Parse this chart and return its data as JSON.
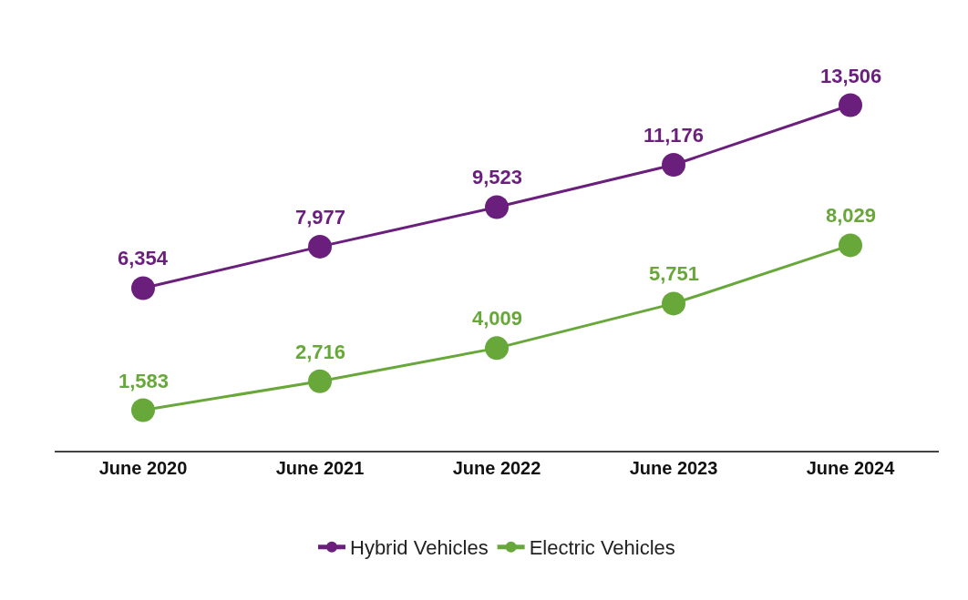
{
  "chart_data": {
    "type": "line",
    "categories": [
      "June 2020",
      "June 2021",
      "June 2022",
      "June 2023",
      "June 2024"
    ],
    "series": [
      {
        "name": "Hybrid Vehicles",
        "color": "#6b1f7c",
        "values": [
          6354,
          7977,
          9523,
          11176,
          13506
        ],
        "value_labels": [
          "6,354",
          "7,977",
          "9,523",
          "11,176",
          "13,506"
        ]
      },
      {
        "name": "Electric Vehicles",
        "color": "#68a83a",
        "values": [
          1583,
          2716,
          4009,
          5751,
          8029
        ],
        "value_labels": [
          "1,583",
          "2,716",
          "4,009",
          "5,751",
          "8,029"
        ]
      }
    ],
    "legend": "bottom",
    "marker": "circle",
    "line_style": "solid"
  }
}
